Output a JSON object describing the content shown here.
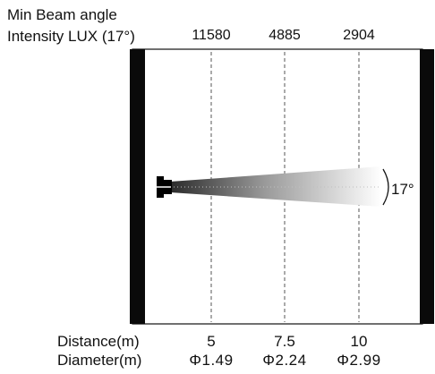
{
  "header": {
    "title": "Min Beam angle",
    "intensity_label": "Intensity LUX (17°)"
  },
  "beam": {
    "angle_label": "17°"
  },
  "columns": [
    {
      "lux": "11580",
      "distance": "5",
      "diameter": "Φ1.49"
    },
    {
      "lux": "4885",
      "distance": "7.5",
      "diameter": "Φ2.24"
    },
    {
      "lux": "2904",
      "distance": "10",
      "diameter": "Φ2.99"
    }
  ],
  "rows": {
    "distance_label": "Distance(m)",
    "diameter_label": "Diameter(m)"
  }
}
